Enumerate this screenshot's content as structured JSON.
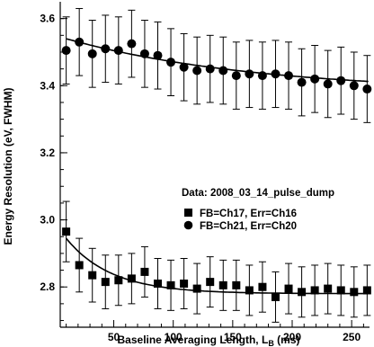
{
  "chart_data": {
    "type": "scatter",
    "title": "",
    "xlabel": "Baseline Averaging Length, L",
    "xlabel_sub": "B",
    "xlabel_unit": " (ms)",
    "ylabel": "Energy Resolution (eV, FWHM)",
    "xlim": [
      5,
      265
    ],
    "ylim": [
      2.68,
      3.65
    ],
    "x_ticks": [
      50,
      100,
      150,
      200,
      250
    ],
    "x_tick_labels": [
      "50",
      "100",
      "150",
      "200",
      "250"
    ],
    "y_ticks": [
      2.8,
      3.0,
      3.2,
      3.4,
      3.6
    ],
    "y_tick_labels": [
      "2.8",
      "3.0",
      "3.2",
      "3.4",
      "3.6"
    ],
    "annotation": "Data: 2008_03_14_pulse_dump",
    "grid": false,
    "legend_position": "right-middle",
    "series": [
      {
        "name": "FB=Ch17, Err=Ch16",
        "marker": "square",
        "x": [
          10,
          21,
          32,
          43,
          54,
          65,
          76,
          87,
          98,
          109,
          120,
          131,
          142,
          153,
          164,
          175,
          186,
          197,
          208,
          219,
          230,
          241,
          252,
          263
        ],
        "y": [
          2.965,
          2.865,
          2.835,
          2.815,
          2.82,
          2.825,
          2.845,
          2.81,
          2.805,
          2.81,
          2.795,
          2.815,
          2.805,
          2.805,
          2.79,
          2.8,
          2.77,
          2.795,
          2.785,
          2.79,
          2.795,
          2.79,
          2.785,
          2.79
        ],
        "err": [
          0.09,
          0.08,
          0.08,
          0.08,
          0.075,
          0.075,
          0.075,
          0.075,
          0.075,
          0.075,
          0.075,
          0.075,
          0.075,
          0.075,
          0.075,
          0.075,
          0.075,
          0.075,
          0.075,
          0.075,
          0.075,
          0.075,
          0.075,
          0.075
        ],
        "fit": {
          "a": 2.78,
          "b": 0.165,
          "tau": 38
        }
      },
      {
        "name": "FB=Ch21, Err=Ch20",
        "marker": "circle",
        "x": [
          10,
          21,
          32,
          43,
          54,
          65,
          76,
          87,
          98,
          109,
          120,
          131,
          142,
          153,
          164,
          175,
          186,
          197,
          208,
          219,
          230,
          241,
          252,
          263
        ],
        "y": [
          3.505,
          3.53,
          3.495,
          3.51,
          3.505,
          3.525,
          3.495,
          3.49,
          3.47,
          3.455,
          3.445,
          3.45,
          3.445,
          3.43,
          3.435,
          3.43,
          3.435,
          3.43,
          3.41,
          3.42,
          3.405,
          3.415,
          3.4,
          3.39
        ],
        "err": [
          0.1,
          0.1,
          0.1,
          0.1,
          0.1,
          0.1,
          0.1,
          0.1,
          0.1,
          0.1,
          0.1,
          0.1,
          0.1,
          0.1,
          0.1,
          0.1,
          0.1,
          0.1,
          0.1,
          0.1,
          0.1,
          0.1,
          0.1,
          0.1
        ],
        "fit": {
          "a": 3.38,
          "b": 0.16,
          "tau": 160
        }
      }
    ]
  }
}
